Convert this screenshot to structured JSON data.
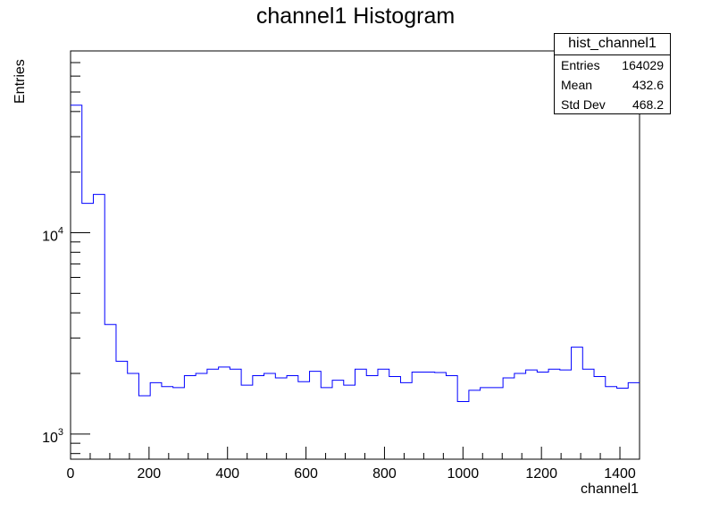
{
  "chart_data": {
    "type": "histogram",
    "title": "channel1 Histogram",
    "xlabel": "channel1",
    "ylabel": "Entries",
    "xlim": [
      0,
      1450
    ],
    "ylim": [
      750,
      80000
    ],
    "yscale": "log",
    "xticks": [
      0,
      200,
      400,
      600,
      800,
      1000,
      1200,
      1400
    ],
    "yticks": [
      {
        "base": "10",
        "exp": "3",
        "value": 1000
      },
      {
        "base": "10",
        "exp": "4",
        "value": 10000
      }
    ],
    "bin_width": 29,
    "series": [
      {
        "color": "#0000ff",
        "values": [
          43000,
          14000,
          15500,
          3500,
          2300,
          2000,
          1550,
          1800,
          1720,
          1700,
          1950,
          2000,
          2100,
          2150,
          2100,
          1750,
          1950,
          2000,
          1900,
          1950,
          1820,
          2050,
          1700,
          1850,
          1750,
          2100,
          1950,
          2100,
          1930,
          1800,
          2030,
          2030,
          2020,
          1950,
          1450,
          1650,
          1700,
          1700,
          1900,
          2000,
          2080,
          2030,
          2100,
          2080,
          2700,
          2100,
          1930,
          1720,
          1690,
          1800
        ]
      }
    ]
  },
  "stats": {
    "name": "hist_channel1",
    "rows": [
      {
        "label": "Entries",
        "value": "164029"
      },
      {
        "label": "Mean",
        "value": "432.6"
      },
      {
        "label": "Std Dev",
        "value": "468.2"
      }
    ]
  }
}
